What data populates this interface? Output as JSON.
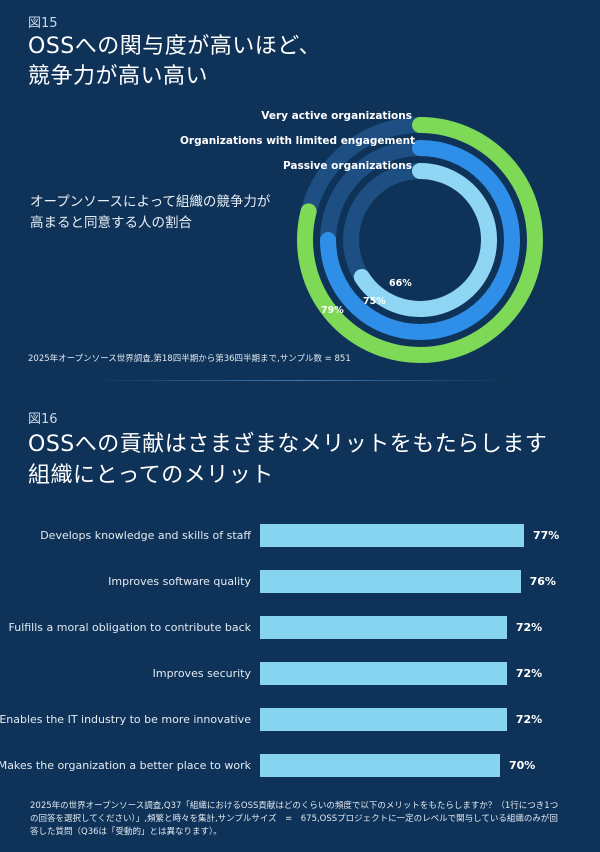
{
  "fig15": {
    "label": "図15",
    "title_line1": "OSSへの関与度が高いほど、",
    "title_line2": "競争力が高い高い",
    "subtitle_line1": "オープンソースによって組織の競争力が",
    "subtitle_line2": "高まると同意する人の割合",
    "note": "2025年オープンソース世界調査,第18四半期から第36四半期まで,サンプル数 = 851"
  },
  "fig16": {
    "label": "図16",
    "title_line1": "OSSへの貢献はさまざまなメリットをもたらします",
    "title_line2": "組織にとってのメリット",
    "note_line1": "2025年の世界オープンソース調査,Q37「組織におけるOSS貢献はどのくらいの頻度で以下のメリットをもたらしますか？（1行につき1つ",
    "note_line2": "の回答を選択してください）」,頻繁と時々を集計,サンプルサイズ　=　675,OSSプロジェクトに一定のレベルで関与している組織のみが回",
    "note_line3": "答した質問（Q36は「受動的」とは異なります）。"
  },
  "colors": {
    "background": "#0f3358",
    "track": "#1d4f82",
    "very_active": "#7ed957",
    "limited": "#2f8fe8",
    "passive": "#8fd6f5",
    "bar": "#86d4f0"
  },
  "chart_data": [
    {
      "type": "pie",
      "subtype": "radial-progress",
      "categories": [
        "Very active organizations",
        "Organizations with limited engagement",
        "Passive organizations"
      ],
      "values": [
        79,
        75,
        66
      ],
      "value_labels": [
        "79%",
        "75%",
        "66%"
      ],
      "unit": "%",
      "max": 100
    },
    {
      "type": "bar",
      "orientation": "horizontal",
      "categories": [
        "Develops knowledge and skills of staff",
        "Improves software quality",
        "Fulfills a moral obligation to contribute back",
        "Improves security",
        "Enables the IT industry to be more innovative",
        "Makes the organization a better place to work"
      ],
      "values": [
        77,
        76,
        72,
        72,
        72,
        70
      ],
      "value_labels": [
        "77%",
        "76%",
        "72%",
        "72%",
        "72%",
        "70%"
      ],
      "unit": "%"
    }
  ]
}
